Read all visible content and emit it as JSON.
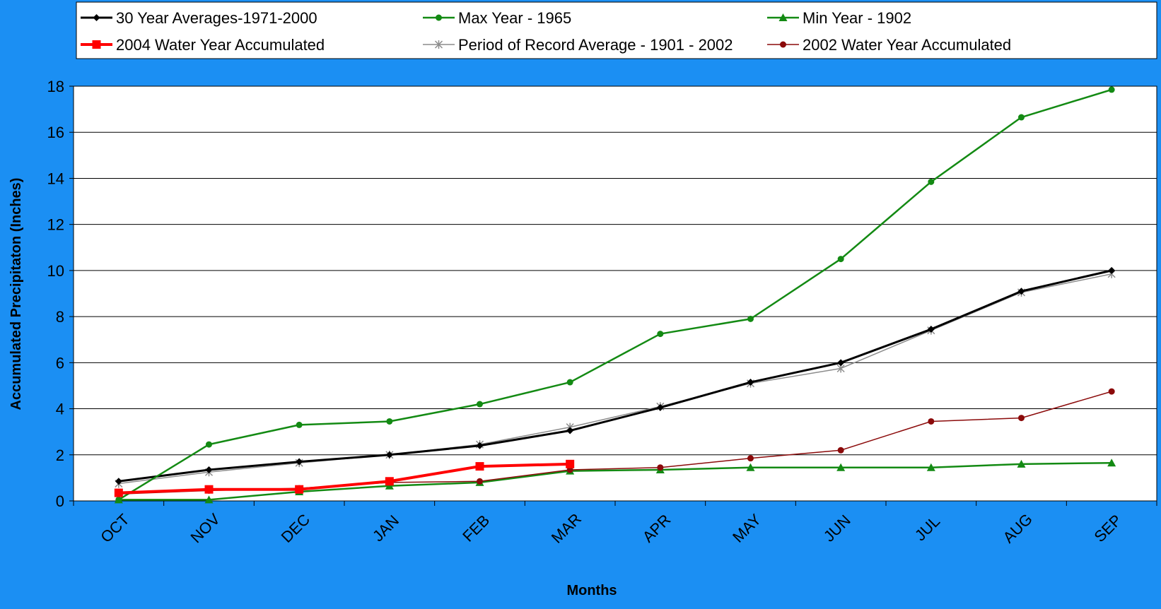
{
  "chart_data": {
    "type": "line",
    "title": "",
    "xlabel": "Months",
    "ylabel": "Accumulated Precipitaton (Inches)",
    "ylim": [
      0,
      18
    ],
    "yticks": [
      0,
      2,
      4,
      6,
      8,
      10,
      12,
      14,
      16,
      18
    ],
    "grid": true,
    "legend_position": "top",
    "categories": [
      "OCT",
      "NOV",
      "DEC",
      "JAN",
      "FEB",
      "MAR",
      "APR",
      "MAY",
      "JUN",
      "JUL",
      "AUG",
      "SEP"
    ],
    "series": [
      {
        "name": "30 Year Averages-1971-2000",
        "color": "#000000",
        "marker": "diamond",
        "values": [
          0.85,
          1.35,
          1.7,
          2.0,
          2.4,
          3.05,
          4.05,
          5.15,
          6.0,
          7.45,
          9.1,
          10.0
        ]
      },
      {
        "name": "Max Year - 1965",
        "color": "#138a13",
        "marker": "circle",
        "values": [
          0.05,
          2.45,
          3.3,
          3.45,
          4.2,
          5.15,
          7.25,
          7.9,
          10.5,
          13.85,
          16.65,
          17.85
        ]
      },
      {
        "name": "Min Year - 1902",
        "color": "#138a13",
        "marker": "triangle",
        "values": [
          0.05,
          0.05,
          0.4,
          0.65,
          0.8,
          1.3,
          1.35,
          1.45,
          1.45,
          1.45,
          1.6,
          1.65
        ]
      },
      {
        "name": "2004 Water Year Accumulated",
        "color": "#ff0000",
        "marker": "square",
        "values": [
          0.35,
          0.5,
          0.5,
          0.85,
          1.5,
          1.6,
          null,
          null,
          null,
          null,
          null,
          null
        ]
      },
      {
        "name": "Period of Record Average - 1901 - 2002",
        "color": "#8c8c8c",
        "marker": "star",
        "values": [
          0.75,
          1.25,
          1.65,
          2.0,
          2.45,
          3.2,
          4.1,
          5.1,
          5.75,
          7.4,
          9.05,
          9.85
        ]
      },
      {
        "name": "2002 Water Year Accumulated",
        "color": "#8b0a0a",
        "marker": "circle",
        "values": [
          0.3,
          0.45,
          0.55,
          0.8,
          0.85,
          1.35,
          1.45,
          1.85,
          2.2,
          3.45,
          3.6,
          4.75
        ]
      }
    ]
  }
}
